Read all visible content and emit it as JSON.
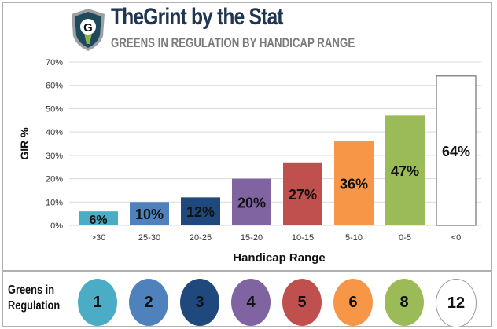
{
  "header": {
    "title": "TheGrint by the Stat",
    "subtitle": "GREENS IN REGULATION BY HANDICAP RANGE"
  },
  "chart_data": {
    "type": "bar",
    "title": "Greens in Regulation by Handicap Range",
    "xlabel": "Handicap Range",
    "ylabel": "GIR %",
    "ylim": [
      0,
      70
    ],
    "yticks": [
      "0%",
      "10%",
      "20%",
      "30%",
      "40%",
      "50%",
      "60%",
      "70%"
    ],
    "categories": [
      ">30",
      "25-30",
      "20-25",
      "15-20",
      "10-15",
      "5-10",
      "0-5",
      "<0"
    ],
    "values": [
      6,
      10,
      12,
      20,
      27,
      36,
      47,
      64
    ],
    "labels": [
      "6%",
      "10%",
      "12%",
      "20%",
      "27%",
      "36%",
      "47%",
      "64%"
    ],
    "colors": [
      "#4bacc6",
      "#4f81bd",
      "#1f497d",
      "#8064a2",
      "#c0504d",
      "#f79646",
      "#9bbb59",
      "#ffffff"
    ]
  },
  "legend": {
    "label": "Greens in Regulation",
    "values": [
      "1",
      "2",
      "3",
      "4",
      "5",
      "6",
      "8",
      "12"
    ]
  }
}
